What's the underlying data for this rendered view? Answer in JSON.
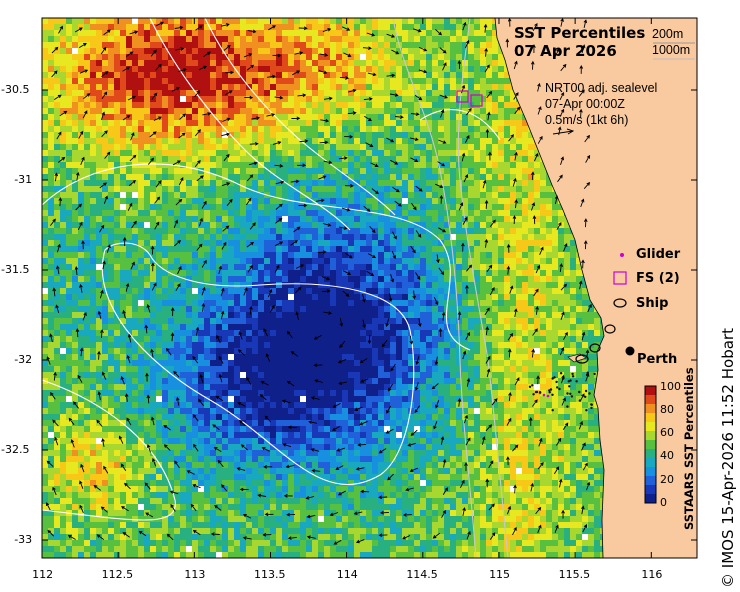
{
  "map": {
    "title": "SST Percentiles",
    "date": "07 Apr 2026",
    "isobaths": [
      "200m",
      "1000m"
    ],
    "current_source": "NRT00 adj. sealevel",
    "current_time": "07-Apr 00:00Z",
    "current_scale": "0.5m/s (1kt 6h)",
    "lon_ticks": [
      "112",
      "112.5",
      "113",
      "113.5",
      "114",
      "114.5",
      "115",
      "115.5",
      "116"
    ],
    "lat_ticks": [
      "-30.5",
      "-31",
      "-31.5",
      "-32",
      "-32.5",
      "-33"
    ],
    "lon_range": [
      112,
      116.3
    ],
    "lat_range": [
      -33.1,
      -30.1
    ],
    "legend": [
      {
        "label": "Glider",
        "symbol": "dot",
        "color": "#d000d0"
      },
      {
        "label": "FS (2)",
        "symbol": "square",
        "color": "#d000d0"
      },
      {
        "label": "Ship",
        "symbol": "circle",
        "color": "#000000"
      }
    ],
    "city": {
      "label": "Perth",
      "lon": 115.86,
      "lat": -31.95
    },
    "colorbar": {
      "title": "SSTAARS SST Percentiles",
      "ticks": [
        "100",
        "80",
        "60",
        "40",
        "20",
        "0"
      ],
      "colors": [
        "#b01010",
        "#e04a1a",
        "#f09020",
        "#f8c818",
        "#e8e820",
        "#a8d830",
        "#58c040",
        "#28b080",
        "#18a8c0",
        "#1890e0",
        "#2060d8",
        "#1838b8",
        "#10208a"
      ]
    },
    "credit": "© IMOS 15-Apr-2026 11:52 Hobart",
    "colors": {
      "land": "#f9c9a0",
      "isobath": "#cccccc",
      "contour": "#ffffff"
    }
  }
}
